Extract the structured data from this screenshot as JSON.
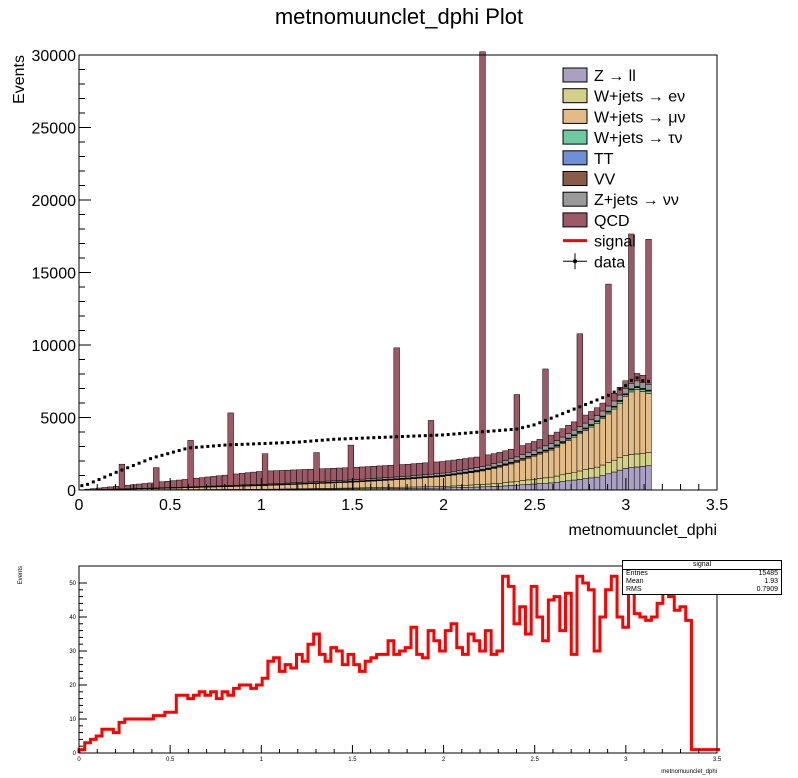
{
  "chart_data": [
    {
      "type": "stacked-histogram",
      "title": "metnomuunclet_dphi Plot",
      "xlabel": "metnomuunclet_dphi",
      "ylabel": "Events",
      "xlim": [
        0,
        3.5
      ],
      "ylim": [
        0,
        30000
      ],
      "x_ticks": [
        "0",
        "0.5",
        "1",
        "1.5",
        "2",
        "2.5",
        "3",
        "3.5"
      ],
      "y_ticks": [
        "0",
        "5000",
        "10000",
        "15000",
        "20000",
        "25000",
        "30000"
      ],
      "legend_position": "top-right",
      "bin_width": 0.0314,
      "bins_to": 3.1416,
      "series": [
        {
          "name": "Z → ll",
          "color": "#a9a0c3",
          "x": [
            0,
            1,
            1.5,
            2,
            2.3,
            2.6,
            2.85,
            3.0,
            3.14
          ],
          "values": [
            0,
            30,
            80,
            140,
            250,
            500,
            900,
            1500,
            1700
          ]
        },
        {
          "name": "W+jets → eν",
          "color": "#d3d187",
          "x": [
            0,
            1,
            1.5,
            2,
            2.3,
            2.6,
            2.85,
            3.0,
            3.14
          ],
          "values": [
            0,
            20,
            60,
            100,
            200,
            400,
            700,
            900,
            900
          ]
        },
        {
          "name": "W+jets → μν",
          "color": "#e3bb86",
          "x": [
            0,
            0.5,
            1,
            1.5,
            1.8,
            2.0,
            2.2,
            2.4,
            2.6,
            2.8,
            2.95,
            3.05,
            3.14
          ],
          "values": [
            0,
            100,
            250,
            400,
            550,
            700,
            900,
            1300,
            1900,
            2800,
            3600,
            4500,
            4000
          ]
        },
        {
          "name": "W+jets → τν",
          "color": "#6cc9a0",
          "x": [
            0,
            2,
            2.6,
            3.14
          ],
          "values": [
            0,
            30,
            80,
            150
          ]
        },
        {
          "name": "TT",
          "color": "#6f8fd6",
          "x": [
            0,
            3.14
          ],
          "values": [
            0,
            30
          ]
        },
        {
          "name": "VV",
          "color": "#8a5b47",
          "x": [
            0,
            3.14
          ],
          "values": [
            0,
            50
          ]
        },
        {
          "name": "Z+jets → νν",
          "color": "#9a9a9a",
          "x": [
            0,
            1,
            2,
            2.6,
            3.14
          ],
          "values": [
            0,
            50,
            150,
            300,
            400
          ]
        },
        {
          "name": "QCD",
          "color": "#9b5a66",
          "x": [
            0,
            1,
            2,
            2.5,
            3.14
          ],
          "values": [
            0,
            900,
            800,
            600,
            500
          ],
          "spikes": [
            {
              "x": 2.22,
              "value": 28600
            },
            {
              "x": 1.73,
              "value": 8900
            },
            {
              "x": 0.82,
              "value": 5000
            },
            {
              "x": 0.61,
              "value": 3200
            },
            {
              "x": 1.93,
              "value": 3700
            },
            {
              "x": 2.41,
              "value": 4300
            },
            {
              "x": 2.57,
              "value": 5300
            },
            {
              "x": 2.76,
              "value": 6400
            },
            {
              "x": 2.92,
              "value": 8400
            },
            {
              "x": 3.02,
              "value": 10300
            },
            {
              "x": 3.11,
              "value": 10000
            },
            {
              "x": 1.49,
              "value": 2400
            },
            {
              "x": 1.3,
              "value": 2000
            },
            {
              "x": 1.03,
              "value": 2100
            },
            {
              "x": 0.24,
              "value": 1700
            },
            {
              "x": 0.43,
              "value": 1400
            }
          ]
        },
        {
          "name": "signal",
          "color": "#ff0000",
          "style": "line"
        },
        {
          "name": "data",
          "color": "#000000",
          "style": "points",
          "x": [
            0.03,
            0.2,
            0.4,
            0.6,
            0.8,
            1.0,
            1.2,
            1.4,
            1.6,
            1.8,
            2.0,
            2.2,
            2.4,
            2.5,
            2.6,
            2.7,
            2.8,
            2.9,
            3.0,
            3.05,
            3.1
          ],
          "values": [
            300,
            1200,
            2200,
            2900,
            3100,
            3200,
            3300,
            3500,
            3600,
            3700,
            3800,
            4000,
            4200,
            4500,
            5000,
            5500,
            6000,
            6500,
            7200,
            7800,
            7500
          ]
        }
      ]
    },
    {
      "type": "histogram",
      "xlabel": "metnomuunclet_dphi",
      "ylabel": "Events",
      "xlim": [
        0,
        3.5
      ],
      "ylim": [
        0,
        55
      ],
      "x_ticks": [
        "0",
        "0.5",
        "1",
        "1.5",
        "2",
        "2.5",
        "3",
        "3.5"
      ],
      "y_ticks": [
        "0",
        "10",
        "20",
        "30",
        "40",
        "50"
      ],
      "bin_width": 0.0314,
      "series": [
        {
          "name": "signal",
          "color": "#ff0000",
          "values": [
            1,
            3,
            4,
            5,
            7,
            7,
            6,
            9,
            10,
            10,
            10,
            10,
            10,
            11,
            11,
            12,
            12,
            17,
            17,
            16,
            17,
            18,
            17,
            18,
            16,
            18,
            17,
            19,
            20,
            20,
            19,
            20,
            22,
            27,
            28,
            24,
            26,
            25,
            29,
            27,
            32,
            35,
            29,
            27,
            31,
            30,
            26,
            29,
            26,
            24,
            27,
            28,
            29,
            29,
            33,
            29,
            30,
            31,
            37,
            29,
            28,
            36,
            33,
            30,
            36,
            38,
            31,
            29,
            35,
            33,
            30,
            36,
            29,
            30,
            52,
            49,
            38,
            43,
            35,
            49,
            40,
            33,
            45,
            46,
            36,
            47,
            29,
            52,
            50,
            48,
            30,
            40,
            48,
            52,
            40,
            37,
            52,
            41,
            40,
            39,
            40,
            44,
            52,
            46,
            42,
            43,
            39,
            1,
            1,
            1,
            1,
            1
          ]
        },
        {
          "name": "",
          "color": "#ff0000"
        }
      ],
      "stats": {
        "title": "signal",
        "entries_label": "Entries",
        "entries": "15485",
        "mean_label": "Mean",
        "mean": "1.93",
        "rms_label": "RMS",
        "rms": "0.7909"
      }
    }
  ]
}
